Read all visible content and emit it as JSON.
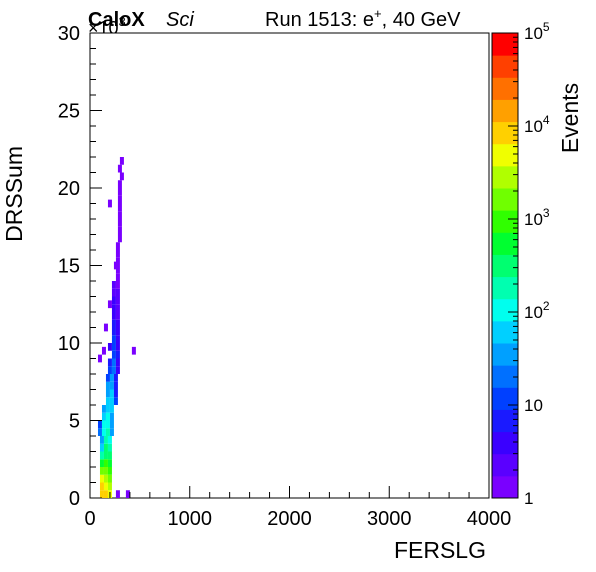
{
  "header": {
    "experiment": "CaloX",
    "detector": "Sci",
    "run_label": "Run 1513: e",
    "particle_sup": "+",
    "energy": ", 40 GeV"
  },
  "chart_data": {
    "type": "heatmap",
    "xlabel": "FERSLG",
    "ylabel": "DRSSum",
    "zlabel": "Events",
    "xlim": [
      0,
      4000
    ],
    "ylim": [
      0,
      30000
    ],
    "y_exponent_label": "×10",
    "y_exponent_power": "3",
    "zscale": "log",
    "zlim": [
      1,
      100000
    ],
    "x_ticks": [
      "0",
      "1000",
      "2000",
      "3000",
      "4000"
    ],
    "y_ticks": [
      "0",
      "5",
      "10",
      "15",
      "20",
      "25",
      "30"
    ],
    "z_ticks": [
      {
        "base": "1",
        "exp": ""
      },
      {
        "base": "10",
        "exp": ""
      },
      {
        "base": "10",
        "exp": "2"
      },
      {
        "base": "10",
        "exp": "3"
      },
      {
        "base": "10",
        "exp": "4"
      },
      {
        "base": "10",
        "exp": "5"
      }
    ],
    "palette": [
      "#7a00ff",
      "#5a00ff",
      "#3a00ff",
      "#1a1aff",
      "#0040ff",
      "#0070ff",
      "#00a0ff",
      "#00d0ff",
      "#00ffee",
      "#00ffb0",
      "#00ff70",
      "#00ff30",
      "#30ff00",
      "#70ff00",
      "#b0ff00",
      "#f0ff00",
      "#ffd000",
      "#ffa000",
      "#ff7000",
      "#ff4000",
      "#ff0000"
    ],
    "cells": [
      [
        120,
        250,
        9000
      ],
      [
        160,
        250,
        7000
      ],
      [
        200,
        250,
        4000
      ],
      [
        120,
        750,
        7000
      ],
      [
        160,
        750,
        5500
      ],
      [
        200,
        750,
        3000
      ],
      [
        120,
        1250,
        4000
      ],
      [
        160,
        1250,
        3500
      ],
      [
        200,
        1250,
        2000
      ],
      [
        120,
        1750,
        1500
      ],
      [
        160,
        1750,
        1800
      ],
      [
        200,
        1750,
        1200
      ],
      [
        120,
        2250,
        600
      ],
      [
        160,
        2250,
        800
      ],
      [
        200,
        2250,
        500
      ],
      [
        120,
        2750,
        200
      ],
      [
        160,
        2750,
        400
      ],
      [
        200,
        2750,
        300
      ],
      [
        120,
        3250,
        80
      ],
      [
        160,
        3250,
        250
      ],
      [
        200,
        3250,
        150
      ],
      [
        120,
        3750,
        30
      ],
      [
        160,
        3750,
        150
      ],
      [
        200,
        3750,
        100
      ],
      [
        100,
        4250,
        20
      ],
      [
        140,
        4250,
        120
      ],
      [
        180,
        4250,
        150
      ],
      [
        220,
        4250,
        40
      ],
      [
        100,
        4750,
        15
      ],
      [
        140,
        4750,
        90
      ],
      [
        180,
        4750,
        120
      ],
      [
        220,
        4750,
        30
      ],
      [
        140,
        5250,
        50
      ],
      [
        180,
        5250,
        110
      ],
      [
        220,
        5250,
        40
      ],
      [
        140,
        5750,
        30
      ],
      [
        180,
        5750,
        80
      ],
      [
        220,
        5750,
        60
      ],
      [
        180,
        6250,
        70
      ],
      [
        220,
        6250,
        50
      ],
      [
        260,
        6250,
        10
      ],
      [
        180,
        6750,
        40
      ],
      [
        220,
        6750,
        50
      ],
      [
        260,
        6750,
        8
      ],
      [
        180,
        7250,
        30
      ],
      [
        220,
        7250,
        40
      ],
      [
        260,
        7250,
        6
      ],
      [
        180,
        7750,
        15
      ],
      [
        220,
        7750,
        30
      ],
      [
        260,
        7750,
        8
      ],
      [
        200,
        8250,
        12
      ],
      [
        240,
        8250,
        25
      ],
      [
        280,
        8250,
        5
      ],
      [
        200,
        8750,
        8
      ],
      [
        240,
        8750,
        20
      ],
      [
        280,
        8750,
        4
      ],
      [
        240,
        9250,
        15
      ],
      [
        280,
        9250,
        6
      ],
      [
        200,
        9750,
        3
      ],
      [
        240,
        9750,
        12
      ],
      [
        280,
        9750,
        5
      ],
      [
        240,
        10250,
        10
      ],
      [
        280,
        10250,
        4
      ],
      [
        240,
        10750,
        8
      ],
      [
        280,
        10750,
        3
      ],
      [
        240,
        11250,
        6
      ],
      [
        280,
        11250,
        3
      ],
      [
        240,
        11750,
        5
      ],
      [
        280,
        11750,
        2
      ],
      [
        240,
        12250,
        4
      ],
      [
        280,
        12250,
        2
      ],
      [
        240,
        12750,
        3
      ],
      [
        280,
        12750,
        2
      ],
      [
        240,
        13250,
        2
      ],
      [
        280,
        13250,
        2
      ],
      [
        240,
        13750,
        2
      ],
      [
        280,
        13750,
        1
      ],
      [
        280,
        14250,
        1
      ],
      [
        280,
        14750,
        1
      ],
      [
        280,
        15250,
        1
      ],
      [
        280,
        15750,
        1
      ],
      [
        280,
        16250,
        1
      ],
      [
        300,
        16750,
        1
      ],
      [
        300,
        17250,
        1
      ],
      [
        300,
        17750,
        1
      ],
      [
        300,
        18250,
        1
      ],
      [
        300,
        18750,
        1
      ],
      [
        300,
        19250,
        1
      ],
      [
        300,
        19750,
        1
      ],
      [
        300,
        20250,
        1
      ],
      [
        320,
        20750,
        1
      ],
      [
        300,
        21250,
        1
      ],
      [
        320,
        21750,
        1
      ],
      [
        100,
        9000,
        1
      ],
      [
        140,
        9500,
        1
      ],
      [
        160,
        11000,
        1
      ],
      [
        200,
        12500,
        1
      ],
      [
        200,
        19000,
        1
      ],
      [
        260,
        15000,
        1
      ],
      [
        440,
        9500,
        1
      ],
      [
        380,
        250,
        1
      ],
      [
        280,
        250,
        1
      ]
    ]
  }
}
